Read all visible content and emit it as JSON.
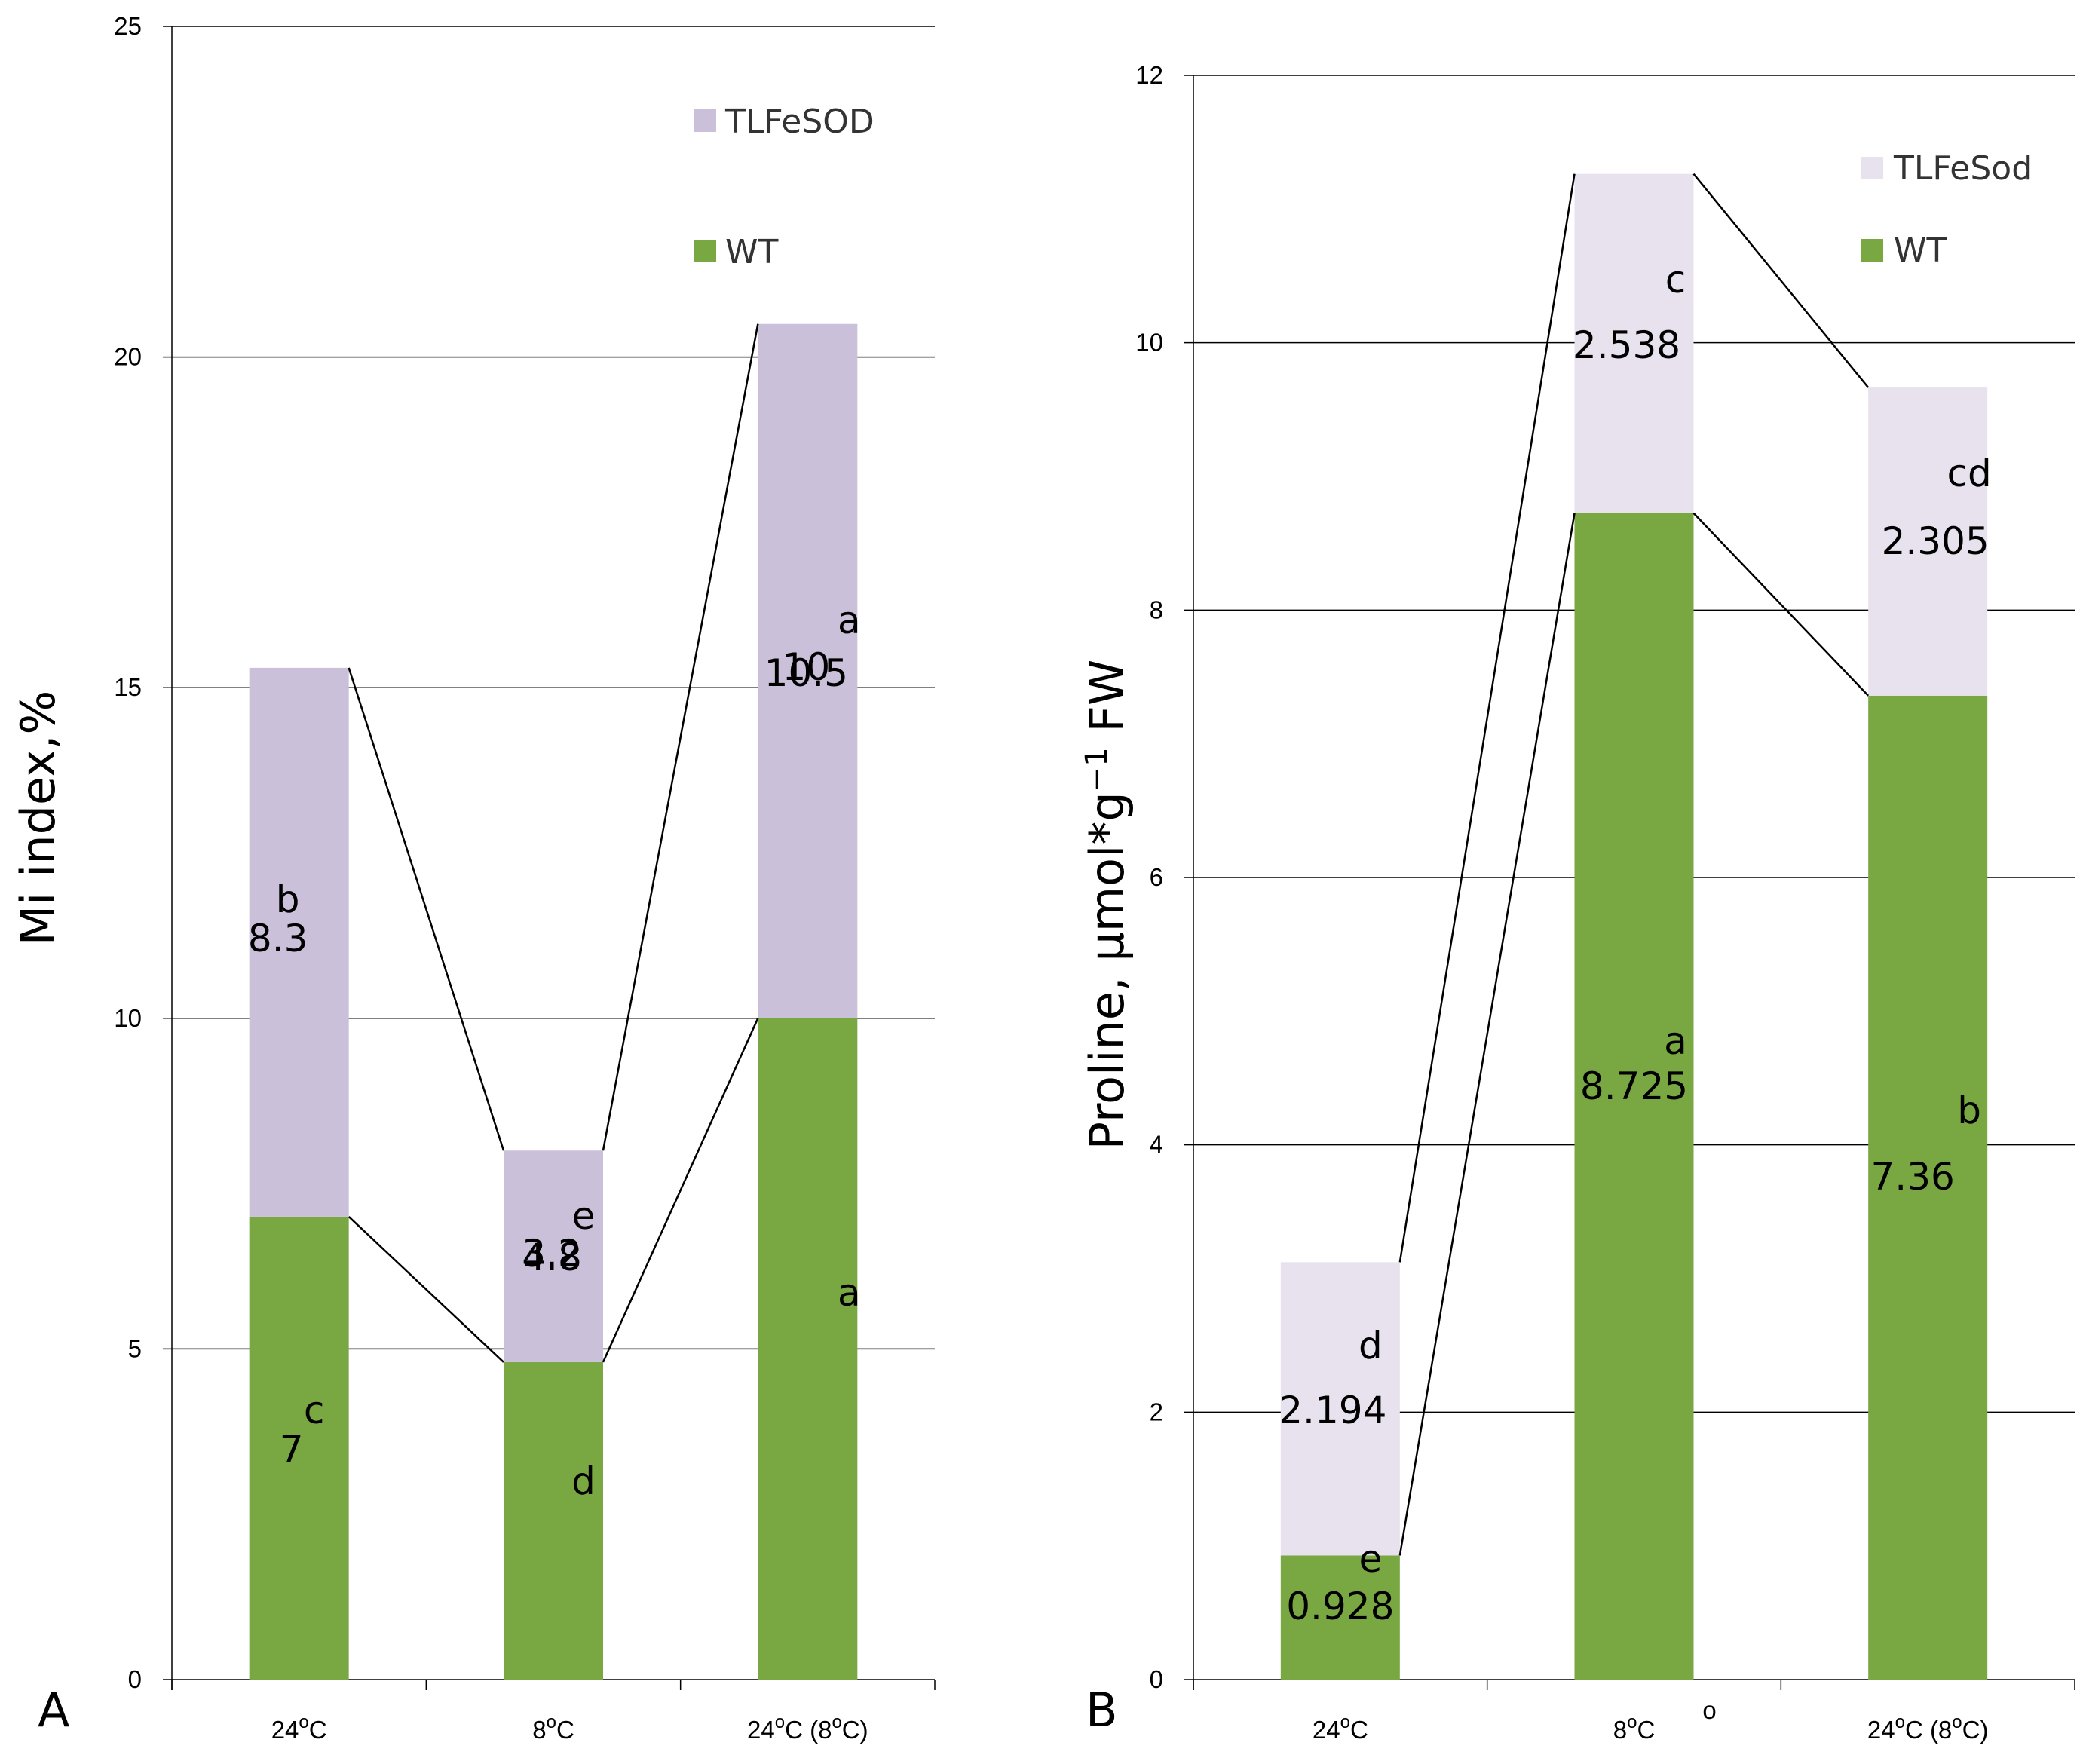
{
  "colors": {
    "wt": "#79a843",
    "tl_a": "#cbc0da",
    "tl_b": "#e8e2ee",
    "grid": "#000000"
  },
  "chart_data": [
    {
      "type": "bar",
      "stacked": true,
      "panel": "A",
      "ylabel": "Mi index,%",
      "ylim": [
        0,
        25
      ],
      "yticks": [
        "0",
        "5",
        "10",
        "15",
        "20",
        "25"
      ],
      "categories": [
        "24°C",
        "8°C",
        "24°C (8°C)"
      ],
      "category_labels": [
        {
          "base": "24",
          "sup": "o",
          "tail": "C"
        },
        {
          "base": "8",
          "sup": "o",
          "tail": "C"
        },
        {
          "base": "24",
          "sup": "o",
          "tail": "C (8",
          "sup2": "o",
          "tail2": "C)"
        }
      ],
      "legend": [
        "TLFeSOD",
        "WT"
      ],
      "series": [
        {
          "name": "WT",
          "values": [
            7,
            4.8,
            10
          ],
          "labels": [
            "7",
            "4.8",
            "10"
          ],
          "letters": [
            "c",
            "d",
            "a"
          ]
        },
        {
          "name": "TLFeSOD",
          "values": [
            8.3,
            3.2,
            10.5
          ],
          "labels": [
            "8.3",
            "3.2",
            "10.5"
          ],
          "letters": [
            "b",
            "e",
            "a"
          ]
        }
      ]
    },
    {
      "type": "bar",
      "stacked": true,
      "panel": "B",
      "ylabel": "Proline, µmol*g",
      "ylabel_sup": "−1",
      "ylabel_tail": " FW",
      "ylim": [
        0,
        12
      ],
      "yticks": [
        "0",
        "2",
        "4",
        "6",
        "8",
        "10",
        "12"
      ],
      "categories": [
        "24°C",
        "8°C",
        "24°C (8°C)"
      ],
      "category_labels": [
        {
          "base": "24",
          "sup": "o",
          "tail": "C"
        },
        {
          "base": "8",
          "sup": "o",
          "tail": "C",
          "extra": "o"
        },
        {
          "base": "24",
          "sup": "o",
          "tail": "C (8",
          "sup2": "o",
          "tail2": "C)"
        }
      ],
      "legend": [
        "TLFeSod",
        "WT"
      ],
      "series": [
        {
          "name": "WT",
          "values": [
            0.928,
            8.725,
            7.36
          ],
          "labels": [
            "0.928",
            "8.725",
            "7.36"
          ],
          "letters": [
            "e",
            "a",
            "b"
          ]
        },
        {
          "name": "TLFeSod",
          "values": [
            2.194,
            2.538,
            2.305
          ],
          "labels": [
            "2.194",
            "2.538",
            "2.305"
          ],
          "letters": [
            "d",
            "c",
            "cd"
          ]
        }
      ]
    }
  ]
}
